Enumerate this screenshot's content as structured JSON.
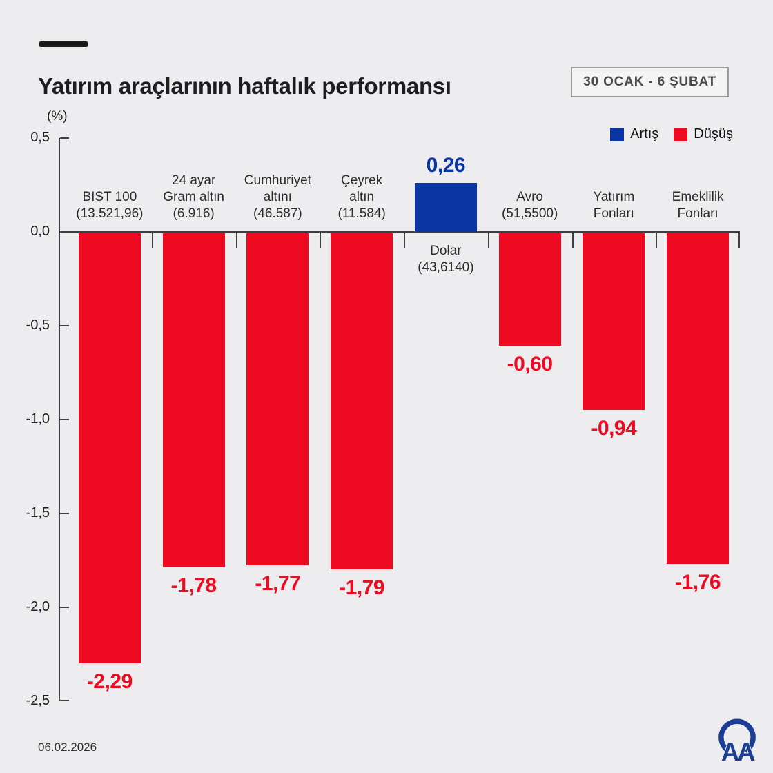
{
  "header": {
    "title": "Yatırım araçlarının haftalık performansı",
    "date_range": "30 OCAK - 6 ŞUBAT"
  },
  "legend": {
    "increase_label": "Artış",
    "decrease_label": "Düşüş",
    "increase_color": "#0a35a3",
    "decrease_color": "#ee0a21"
  },
  "axis": {
    "unit_label": "(%)",
    "tick_labels": [
      "0,5",
      "0,0",
      "-0,5",
      "-1,0",
      "-1,5",
      "-2,0",
      "-2,5"
    ],
    "axis_color": "#404040"
  },
  "footer": {
    "date": "06.02.2026",
    "logo_text": "AA",
    "logo_color": "#1b3e94"
  },
  "chart_data": {
    "type": "bar",
    "title": "Yatırım araçlarının haftalık performansı",
    "unit": "%",
    "ylim": [
      -2.5,
      0.5
    ],
    "grid": false,
    "legend_position": "top-right",
    "categories": [
      {
        "label_lines": [
          "BIST 100",
          "(13.521,96)"
        ],
        "value": -2.29,
        "value_label": "-2,29",
        "direction": "decrease",
        "label_below_axis": false
      },
      {
        "label_lines": [
          "24 ayar",
          "Gram altın",
          "(6.916)"
        ],
        "value": -1.78,
        "value_label": "-1,78",
        "direction": "decrease",
        "label_below_axis": false
      },
      {
        "label_lines": [
          "Cumhuriyet",
          "altını",
          "(46.587)"
        ],
        "value": -1.77,
        "value_label": "-1,77",
        "direction": "decrease",
        "label_below_axis": false
      },
      {
        "label_lines": [
          "Çeyrek",
          "altın",
          "(11.584)"
        ],
        "value": -1.79,
        "value_label": "-1,79",
        "direction": "decrease",
        "label_below_axis": false
      },
      {
        "label_lines": [
          "Dolar",
          "(43,6140)"
        ],
        "value": 0.26,
        "value_label": "0,26",
        "direction": "increase",
        "label_below_axis": true
      },
      {
        "label_lines": [
          "Avro",
          "(51,5500)"
        ],
        "value": -0.6,
        "value_label": "-0,60",
        "direction": "decrease",
        "label_below_axis": false
      },
      {
        "label_lines": [
          "Yatırım",
          "Fonları"
        ],
        "value": -0.94,
        "value_label": "-0,94",
        "direction": "decrease",
        "label_below_axis": false
      },
      {
        "label_lines": [
          "Emeklilik",
          "Fonları"
        ],
        "value": -1.76,
        "value_label": "-1,76",
        "direction": "decrease",
        "label_below_axis": false
      }
    ]
  }
}
